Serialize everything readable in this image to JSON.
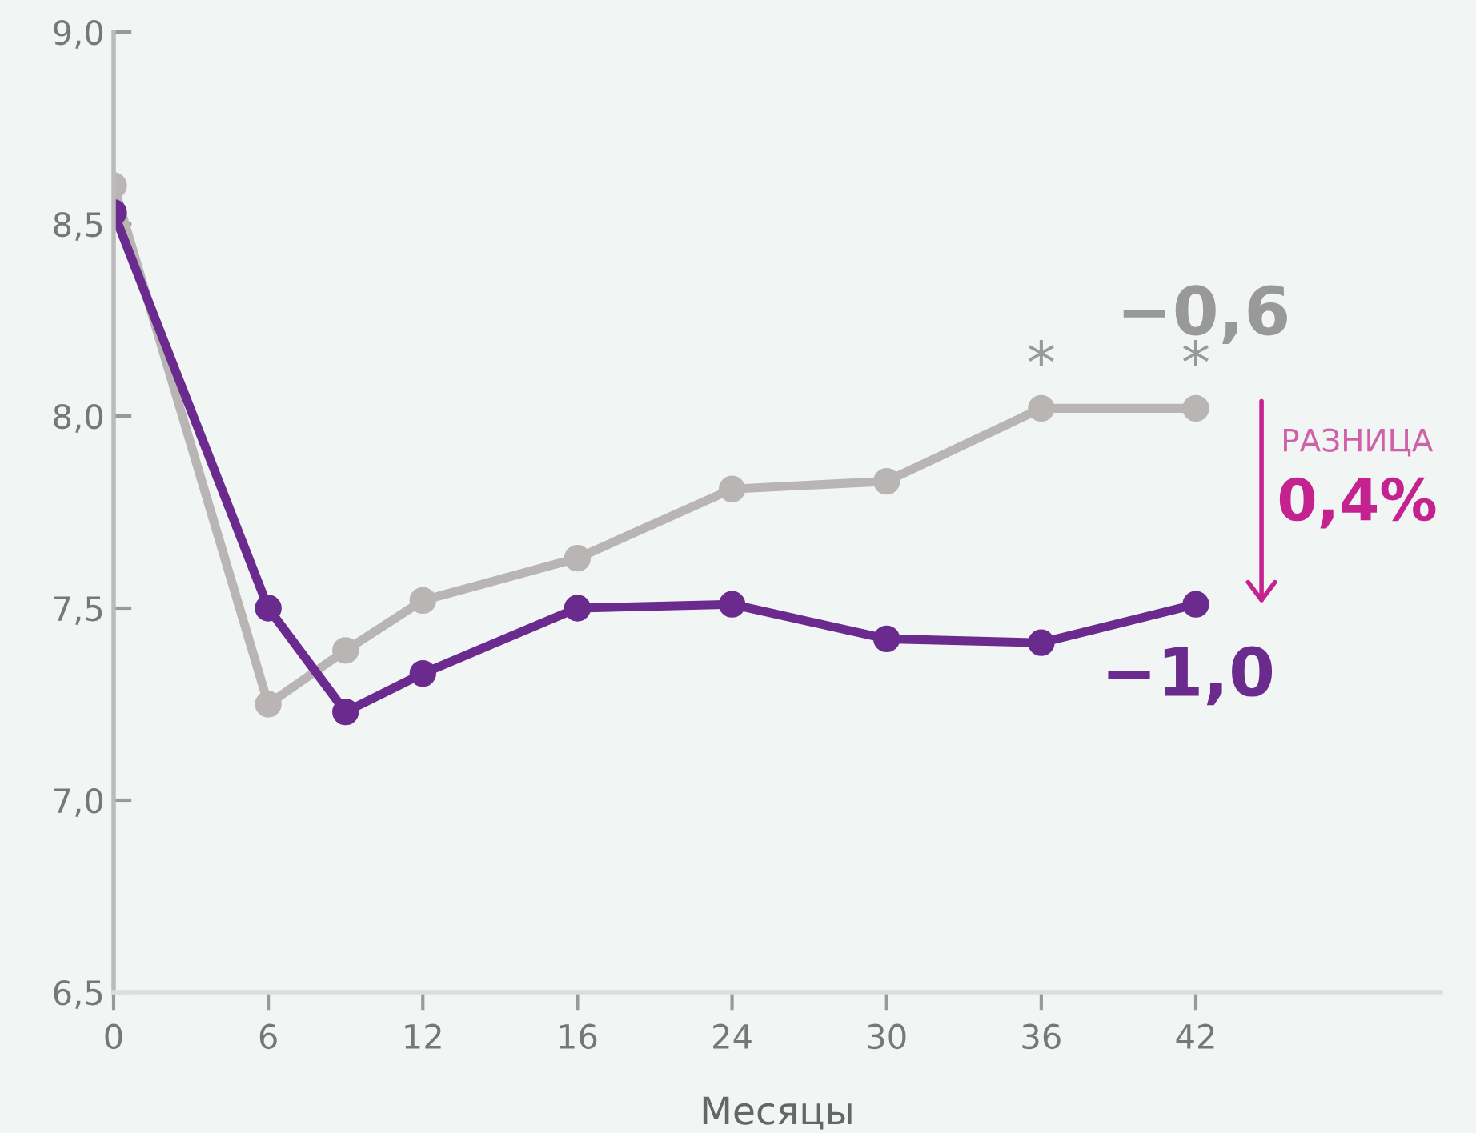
{
  "chart_data": {
    "type": "line",
    "xlabel": "Месяцы",
    "categories": [
      "0",
      null,
      "6",
      null,
      "12",
      null,
      "16",
      null,
      "24",
      null,
      "30",
      null,
      "36",
      null,
      "42"
    ],
    "series": [
      {
        "color": "#bab5b5",
        "values": [
          8.6,
          null,
          7.25,
          7.39,
          7.52,
          null,
          7.63,
          null,
          7.81,
          null,
          7.83,
          null,
          8.02,
          null,
          8.02
        ]
      },
      {
        "color": "#6b2a8e",
        "values": [
          8.53,
          null,
          7.5,
          7.23,
          7.33,
          null,
          7.5,
          null,
          7.51,
          null,
          7.42,
          null,
          7.41,
          null,
          7.51
        ]
      }
    ],
    "ylim": [
      6.5,
      9.0
    ],
    "yticks": [
      {
        "value": 6.5,
        "label": "6,5"
      },
      {
        "value": 7.0,
        "label": "7,0"
      },
      {
        "value": 7.5,
        "label": "7,5"
      },
      {
        "value": 8.0,
        "label": "8,0"
      },
      {
        "value": 8.5,
        "label": "8,5"
      },
      {
        "value": 9.0,
        "label": "9,0"
      }
    ],
    "marker": "circle",
    "grid": false,
    "legend": false,
    "annotations": [
      {
        "text": "*",
        "x": "36",
        "y": 8.02
      },
      {
        "text": "*",
        "x": "42",
        "y": 8.02
      },
      "−0,6",
      "−1,0",
      "РАЗНИЦА",
      "0,4%"
    ]
  }
}
